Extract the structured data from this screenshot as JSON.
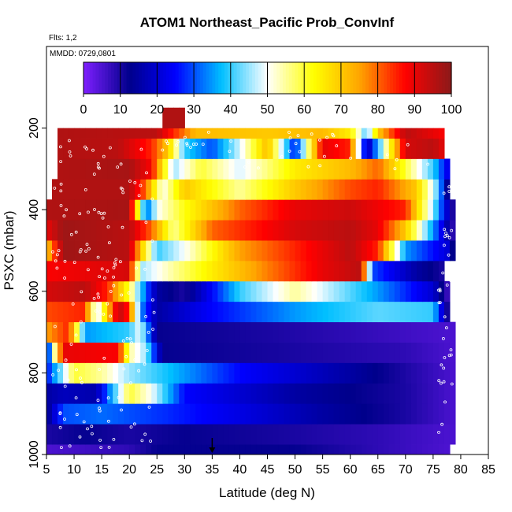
{
  "chart_data": {
    "type": "heatmap",
    "title": "ATOM1 Northeast_Pacific Prob_ConvInf",
    "flights_note": "Flts: 1,2",
    "dates_note": "MMDD: 0729,0801",
    "xlabel": "Latitude (deg N)",
    "ylabel": "PSXC (mbar)",
    "xlim": [
      5,
      85
    ],
    "ylim": [
      1000,
      0
    ],
    "x_ticks": [
      "5",
      "10",
      "15",
      "20",
      "25",
      "30",
      "35",
      "40",
      "45",
      "50",
      "55",
      "60",
      "65",
      "70",
      "75",
      "80",
      "85"
    ],
    "y_ticks": [
      "200",
      "400",
      "600",
      "800",
      "1000"
    ],
    "colorbar": {
      "range": [
        0,
        100
      ],
      "ticks": [
        "0",
        "10",
        "20",
        "30",
        "40",
        "50",
        "60",
        "70",
        "80",
        "90",
        "100"
      ],
      "colors": [
        "#7f1fff",
        "#00008b",
        "#0000ff",
        "#00bfff",
        "#ffffff",
        "#ffff00",
        "#ffa500",
        "#ff0000",
        "#8b1a1a"
      ]
    },
    "marker_arrow_latitude": 35,
    "bands": [
      {
        "p_top": 975,
        "p_bot": 1000,
        "lat_start": 5,
        "lat_end": 78,
        "knots": [
          [
            5,
            5
          ],
          [
            20,
            8
          ],
          [
            25,
            12
          ],
          [
            50,
            12
          ],
          [
            65,
            8
          ],
          [
            78,
            5
          ]
        ]
      },
      {
        "p_top": 925,
        "p_bot": 975,
        "lat_start": 5,
        "lat_end": 79,
        "knots": [
          [
            5,
            10
          ],
          [
            12,
            12
          ],
          [
            20,
            10
          ],
          [
            30,
            12
          ],
          [
            50,
            10
          ],
          [
            65,
            8
          ],
          [
            79,
            5
          ]
        ]
      },
      {
        "p_top": 875,
        "p_bot": 925,
        "lat_start": 5,
        "lat_end": 79,
        "knots": [
          [
            5,
            12
          ],
          [
            8,
            30
          ],
          [
            15,
            32
          ],
          [
            20,
            30
          ],
          [
            26,
            28
          ],
          [
            40,
            22
          ],
          [
            55,
            15
          ],
          [
            70,
            10
          ],
          [
            79,
            5
          ]
        ]
      },
      {
        "p_top": 825,
        "p_bot": 875,
        "lat_start": 5,
        "lat_end": 79,
        "knots": [
          [
            5,
            15
          ],
          [
            8,
            18
          ],
          [
            14,
            16
          ],
          [
            20,
            60
          ],
          [
            24,
            50
          ],
          [
            30,
            25
          ],
          [
            50,
            15
          ],
          [
            70,
            10
          ],
          [
            79,
            5
          ]
        ]
      },
      {
        "p_top": 775,
        "p_bot": 825,
        "lat_start": 5,
        "lat_end": 79,
        "knots": [
          [
            5,
            25
          ],
          [
            10,
            60
          ],
          [
            15,
            55
          ],
          [
            20,
            45
          ],
          [
            25,
            40
          ],
          [
            40,
            25
          ],
          [
            60,
            15
          ],
          [
            79,
            5
          ]
        ]
      },
      {
        "p_top": 725,
        "p_bot": 775,
        "lat_start": 5,
        "lat_end": 79,
        "knots": [
          [
            5,
            20
          ],
          [
            8,
            90
          ],
          [
            18,
            88
          ],
          [
            20,
            55
          ],
          [
            23,
            45
          ],
          [
            26,
            12
          ],
          [
            50,
            10
          ],
          [
            70,
            8
          ],
          [
            79,
            5
          ]
        ]
      },
      {
        "p_top": 675,
        "p_bot": 725,
        "lat_start": 5,
        "lat_end": 79,
        "knots": [
          [
            5,
            75
          ],
          [
            9,
            85
          ],
          [
            12,
            35
          ],
          [
            20,
            40
          ],
          [
            22,
            50
          ],
          [
            25,
            12
          ],
          [
            45,
            10
          ],
          [
            60,
            8
          ],
          [
            79,
            5
          ]
        ]
      },
      {
        "p_top": 625,
        "p_bot": 675,
        "lat_start": 5,
        "lat_end": 78,
        "knots": [
          [
            5,
            82
          ],
          [
            12,
            85
          ],
          [
            14,
            45
          ],
          [
            18,
            95
          ],
          [
            20,
            85
          ],
          [
            22,
            35
          ],
          [
            25,
            15
          ],
          [
            35,
            25
          ],
          [
            50,
            35
          ],
          [
            65,
            42
          ],
          [
            75,
            40
          ],
          [
            78,
            5
          ]
        ]
      },
      {
        "p_top": 575,
        "p_bot": 625,
        "lat_start": 5,
        "lat_end": 78,
        "knots": [
          [
            5,
            92
          ],
          [
            12,
            95
          ],
          [
            16,
            85
          ],
          [
            20,
            60
          ],
          [
            22,
            40
          ],
          [
            25,
            15
          ],
          [
            30,
            10
          ],
          [
            40,
            40
          ],
          [
            50,
            55
          ],
          [
            65,
            35
          ],
          [
            75,
            20
          ],
          [
            78,
            5
          ]
        ]
      },
      {
        "p_top": 525,
        "p_bot": 575,
        "lat_start": 5,
        "lat_end": 77,
        "knots": [
          [
            5,
            88
          ],
          [
            20,
            92
          ],
          [
            22,
            45
          ],
          [
            28,
            55
          ],
          [
            35,
            65
          ],
          [
            45,
            78
          ],
          [
            55,
            90
          ],
          [
            62,
            95
          ],
          [
            64,
            30
          ],
          [
            72,
            15
          ],
          [
            77,
            10
          ]
        ]
      },
      {
        "p_top": 475,
        "p_bot": 525,
        "lat_start": 5,
        "lat_end": 79,
        "knots": [
          [
            5,
            70
          ],
          [
            8,
            98
          ],
          [
            20,
            95
          ],
          [
            22,
            72
          ],
          [
            25,
            40
          ],
          [
            30,
            50
          ],
          [
            40,
            75
          ],
          [
            50,
            85
          ],
          [
            60,
            95
          ],
          [
            65,
            85
          ],
          [
            70,
            35
          ],
          [
            78,
            20
          ],
          [
            79,
            5
          ]
        ]
      },
      {
        "p_top": 425,
        "p_bot": 475,
        "lat_start": 5,
        "lat_end": 79,
        "knots": [
          [
            5,
            90
          ],
          [
            8,
            98
          ],
          [
            20,
            95
          ],
          [
            24,
            80
          ],
          [
            28,
            55
          ],
          [
            35,
            80
          ],
          [
            50,
            92
          ],
          [
            60,
            95
          ],
          [
            65,
            90
          ],
          [
            70,
            70
          ],
          [
            75,
            35
          ],
          [
            79,
            5
          ]
        ]
      },
      {
        "p_top": 375,
        "p_bot": 425,
        "lat_start": 5,
        "lat_end": 79,
        "knots": [
          [
            5,
            96
          ],
          [
            20,
            97
          ],
          [
            23,
            30
          ],
          [
            25,
            50
          ],
          [
            30,
            62
          ],
          [
            40,
            80
          ],
          [
            50,
            90
          ],
          [
            60,
            93
          ],
          [
            70,
            85
          ],
          [
            75,
            45
          ],
          [
            79,
            5
          ]
        ]
      },
      {
        "p_top": 325,
        "p_bot": 375,
        "lat_start": 6,
        "lat_end": 78,
        "knots": [
          [
            6,
            96
          ],
          [
            20,
            96
          ],
          [
            23,
            80
          ],
          [
            26,
            50
          ],
          [
            30,
            70
          ],
          [
            40,
            55
          ],
          [
            50,
            70
          ],
          [
            60,
            82
          ],
          [
            65,
            85
          ],
          [
            72,
            70
          ],
          [
            76,
            40
          ],
          [
            78,
            5
          ]
        ]
      },
      {
        "p_top": 275,
        "p_bot": 325,
        "lat_start": 7,
        "lat_end": 78,
        "knots": [
          [
            7,
            96
          ],
          [
            20,
            97
          ],
          [
            24,
            88
          ],
          [
            28,
            45
          ],
          [
            33,
            60
          ],
          [
            40,
            48
          ],
          [
            50,
            65
          ],
          [
            60,
            72
          ],
          [
            65,
            80
          ],
          [
            70,
            60
          ],
          [
            75,
            40
          ],
          [
            78,
            20
          ]
        ]
      },
      {
        "p_top": 225,
        "p_bot": 275,
        "lat_start": 7,
        "lat_end": 77,
        "knots": [
          [
            7,
            96
          ],
          [
            18,
            95
          ],
          [
            24,
            85
          ],
          [
            27,
            70
          ],
          [
            30,
            40
          ],
          [
            35,
            30
          ],
          [
            40,
            48
          ],
          [
            45,
            72
          ],
          [
            50,
            25
          ],
          [
            55,
            90
          ],
          [
            60,
            85
          ],
          [
            63,
            15
          ],
          [
            67,
            60
          ],
          [
            70,
            92
          ],
          [
            75,
            95
          ],
          [
            77,
            90
          ]
        ]
      },
      {
        "p_top": 200,
        "p_bot": 225,
        "lat_start": 7,
        "lat_end": 77,
        "knots": [
          [
            7,
            96
          ],
          [
            25,
            95
          ],
          [
            27,
            88
          ],
          [
            32,
            72
          ],
          [
            45,
            70
          ],
          [
            55,
            72
          ],
          [
            60,
            65
          ],
          [
            63,
            40
          ],
          [
            65,
            70
          ],
          [
            70,
            95
          ],
          [
            77,
            88
          ]
        ]
      },
      {
        "p_top": 150,
        "p_bot": 200,
        "lat_start": 26,
        "lat_end": 30,
        "knots": [
          [
            26,
            96
          ],
          [
            30,
            96
          ]
        ]
      }
    ]
  }
}
